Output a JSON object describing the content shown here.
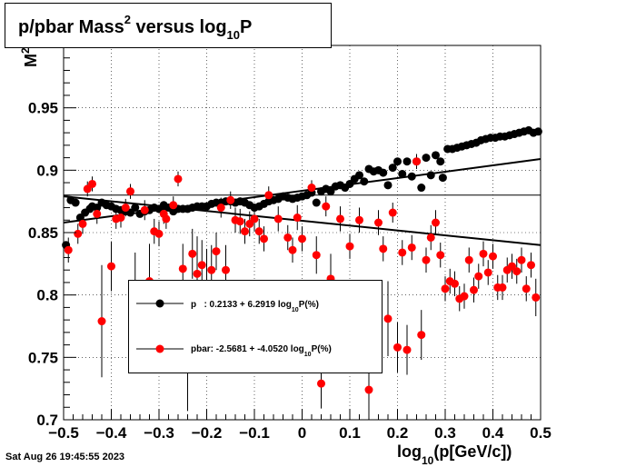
{
  "title": {
    "base": "p/pbar Mass",
    "sup": "2",
    "mid": " versus log",
    "sub": "10",
    "end": "P"
  },
  "footer": {
    "timestamp": "Sat Aug 26 19:45:55 2023"
  },
  "axes": {
    "xlabel_pre": "log",
    "xlabel_sub": "10",
    "xlabel_post": "(p[GeV/c])",
    "ylabel": "M",
    "ylabel_sup": "2"
  },
  "legend": {
    "entries": [
      {
        "name": "p",
        "text_pre": "p   : 0.2133 + 6.2919 log",
        "text_sub": "10",
        "text_post": "P(%)",
        "color": "#000000"
      },
      {
        "name": "pbar",
        "text_pre": "pbar: -2.5681 + -4.0520 log",
        "text_sub": "10",
        "text_post": "P(%)",
        "color": "#ff0000"
      }
    ]
  },
  "chart_data": {
    "type": "scatter",
    "xlim": [
      -0.5,
      0.5
    ],
    "ylim": [
      0.7,
      1.0
    ],
    "grid": true,
    "legend_position": "center-left",
    "xticks": [
      -0.5,
      -0.4,
      -0.3,
      -0.2,
      -0.1,
      0,
      0.1,
      0.2,
      0.3,
      0.4,
      0.5
    ],
    "xtick_labels": [
      "−0.5",
      "−0.4",
      "−0.3",
      "−0.2",
      "−0.1",
      "0",
      "0.1",
      "0.2",
      "0.3",
      "0.4",
      "0.5"
    ],
    "yticks": [
      0.7,
      0.75,
      0.8,
      0.85,
      0.9,
      0.95
    ],
    "ytick_labels": [
      "0.7",
      "0.75",
      "0.8",
      "0.85",
      "0.9",
      "0.95"
    ],
    "reference_line_y": 0.88,
    "fit_lines": [
      {
        "name": "p fit",
        "color": "#000000",
        "x": [
          -0.5,
          0.5
        ],
        "y": [
          0.858,
          0.909
        ]
      },
      {
        "name": "pbar fit",
        "color": "#000000",
        "x": [
          -0.5,
          0.5
        ],
        "y": [
          0.879,
          0.84
        ]
      }
    ],
    "series": [
      {
        "name": "p",
        "color": "#000000",
        "points": [
          [
            -0.495,
            0.84,
            0.003
          ],
          [
            -0.485,
            0.876,
            0.002
          ],
          [
            -0.475,
            0.874,
            0.002
          ],
          [
            -0.465,
            0.862,
            0.002
          ],
          [
            -0.455,
            0.866,
            0.002
          ],
          [
            -0.445,
            0.869,
            0.002
          ],
          [
            -0.44,
            0.871,
            0.002
          ],
          [
            -0.43,
            0.87,
            0.002
          ],
          [
            -0.42,
            0.874,
            0.002
          ],
          [
            -0.41,
            0.872,
            0.002
          ],
          [
            -0.4,
            0.871,
            0.002
          ],
          [
            -0.39,
            0.869,
            0.002
          ],
          [
            -0.38,
            0.868,
            0.002
          ],
          [
            -0.37,
            0.867,
            0.002
          ],
          [
            -0.36,
            0.866,
            0.002
          ],
          [
            -0.35,
            0.87,
            0.002
          ],
          [
            -0.34,
            0.865,
            0.002
          ],
          [
            -0.33,
            0.867,
            0.002
          ],
          [
            -0.32,
            0.868,
            0.002
          ],
          [
            -0.31,
            0.87,
            0.002
          ],
          [
            -0.3,
            0.869,
            0.002
          ],
          [
            -0.29,
            0.872,
            0.002
          ],
          [
            -0.28,
            0.87,
            0.002
          ],
          [
            -0.27,
            0.867,
            0.002
          ],
          [
            -0.26,
            0.869,
            0.002
          ],
          [
            -0.25,
            0.869,
            0.002
          ],
          [
            -0.24,
            0.869,
            0.002
          ],
          [
            -0.23,
            0.87,
            0.002
          ],
          [
            -0.22,
            0.871,
            0.002
          ],
          [
            -0.21,
            0.871,
            0.002
          ],
          [
            -0.2,
            0.871,
            0.002
          ],
          [
            -0.19,
            0.873,
            0.002
          ],
          [
            -0.18,
            0.874,
            0.002
          ],
          [
            -0.17,
            0.874,
            0.002
          ],
          [
            -0.16,
            0.875,
            0.002
          ],
          [
            -0.15,
            0.875,
            0.002
          ],
          [
            -0.14,
            0.874,
            0.002
          ],
          [
            -0.13,
            0.875,
            0.002
          ],
          [
            -0.12,
            0.874,
            0.002
          ],
          [
            -0.11,
            0.872,
            0.002
          ],
          [
            -0.1,
            0.87,
            0.002
          ],
          [
            -0.09,
            0.871,
            0.002
          ],
          [
            -0.08,
            0.873,
            0.002
          ],
          [
            -0.07,
            0.875,
            0.002
          ],
          [
            -0.06,
            0.876,
            0.002
          ],
          [
            -0.05,
            0.877,
            0.002
          ],
          [
            -0.04,
            0.879,
            0.002
          ],
          [
            -0.03,
            0.878,
            0.002
          ],
          [
            -0.02,
            0.877,
            0.002
          ],
          [
            -0.01,
            0.878,
            0.002
          ],
          [
            0.0,
            0.879,
            0.002
          ],
          [
            0.01,
            0.88,
            0.002
          ],
          [
            0.02,
            0.882,
            0.002
          ],
          [
            0.03,
            0.874,
            0.002
          ],
          [
            0.04,
            0.883,
            0.002
          ],
          [
            0.05,
            0.885,
            0.002
          ],
          [
            0.06,
            0.883,
            0.002
          ],
          [
            0.07,
            0.887,
            0.002
          ],
          [
            0.08,
            0.888,
            0.002
          ],
          [
            0.09,
            0.886,
            0.002
          ],
          [
            0.1,
            0.889,
            0.002
          ],
          [
            0.11,
            0.893,
            0.002
          ],
          [
            0.12,
            0.896,
            0.002
          ],
          [
            0.13,
            0.891,
            0.002
          ],
          [
            0.14,
            0.901,
            0.002
          ],
          [
            0.15,
            0.899,
            0.002
          ],
          [
            0.16,
            0.9,
            0.002
          ],
          [
            0.17,
            0.898,
            0.002
          ],
          [
            0.18,
            0.888,
            0.002
          ],
          [
            0.19,
            0.902,
            0.002
          ],
          [
            0.2,
            0.907,
            0.002
          ],
          [
            0.21,
            0.897,
            0.002
          ],
          [
            0.22,
            0.907,
            0.002
          ],
          [
            0.23,
            0.895,
            0.002
          ],
          [
            0.24,
            0.907,
            0.002
          ],
          [
            0.25,
            0.886,
            0.002
          ],
          [
            0.26,
            0.91,
            0.002
          ],
          [
            0.27,
            0.896,
            0.002
          ],
          [
            0.28,
            0.912,
            0.002
          ],
          [
            0.29,
            0.907,
            0.002
          ],
          [
            0.295,
            0.894,
            0.002
          ],
          [
            0.305,
            0.917,
            0.002
          ],
          [
            0.315,
            0.917,
            0.002
          ],
          [
            0.325,
            0.918,
            0.002
          ],
          [
            0.335,
            0.919,
            0.002
          ],
          [
            0.345,
            0.92,
            0.002
          ],
          [
            0.355,
            0.921,
            0.002
          ],
          [
            0.365,
            0.922,
            0.002
          ],
          [
            0.375,
            0.924,
            0.002
          ],
          [
            0.385,
            0.925,
            0.002
          ],
          [
            0.395,
            0.926,
            0.002
          ],
          [
            0.405,
            0.926,
            0.002
          ],
          [
            0.415,
            0.927,
            0.002
          ],
          [
            0.425,
            0.927,
            0.002
          ],
          [
            0.435,
            0.928,
            0.002
          ],
          [
            0.445,
            0.929,
            0.002
          ],
          [
            0.455,
            0.93,
            0.002
          ],
          [
            0.465,
            0.931,
            0.002
          ],
          [
            0.475,
            0.932,
            0.002
          ],
          [
            0.485,
            0.93,
            0.002
          ],
          [
            0.495,
            0.931,
            0.002
          ]
        ]
      },
      {
        "name": "pbar",
        "color": "#ff0000",
        "points": [
          [
            -0.49,
            0.836,
            0.01
          ],
          [
            -0.47,
            0.849,
            0.008
          ],
          [
            -0.46,
            0.857,
            0.008
          ],
          [
            -0.45,
            0.885,
            0.006
          ],
          [
            -0.44,
            0.889,
            0.006
          ],
          [
            -0.43,
            0.865,
            0.008
          ],
          [
            -0.42,
            0.779,
            0.045
          ],
          [
            -0.4,
            0.823,
            0.02
          ],
          [
            -0.39,
            0.861,
            0.008
          ],
          [
            -0.38,
            0.862,
            0.008
          ],
          [
            -0.37,
            0.87,
            0.007
          ],
          [
            -0.36,
            0.883,
            0.006
          ],
          [
            -0.35,
            0.799,
            0.035
          ],
          [
            -0.33,
            0.868,
            0.008
          ],
          [
            -0.32,
            0.811,
            0.03
          ],
          [
            -0.31,
            0.851,
            0.01
          ],
          [
            -0.3,
            0.849,
            0.01
          ],
          [
            -0.29,
            0.865,
            0.008
          ],
          [
            -0.285,
            0.861,
            0.008
          ],
          [
            -0.27,
            0.872,
            0.007
          ],
          [
            -0.26,
            0.893,
            0.006
          ],
          [
            -0.25,
            0.821,
            0.02
          ],
          [
            -0.24,
            0.757,
            0.05
          ],
          [
            -0.23,
            0.833,
            0.02
          ],
          [
            -0.22,
            0.817,
            0.03
          ],
          [
            -0.21,
            0.824,
            0.02
          ],
          [
            -0.2,
            0.807,
            0.03
          ],
          [
            -0.19,
            0.82,
            0.02
          ],
          [
            -0.18,
            0.835,
            0.015
          ],
          [
            -0.17,
            0.87,
            0.008
          ],
          [
            -0.16,
            0.82,
            0.02
          ],
          [
            -0.15,
            0.876,
            0.007
          ],
          [
            -0.14,
            0.86,
            0.01
          ],
          [
            -0.13,
            0.859,
            0.01
          ],
          [
            -0.12,
            0.851,
            0.01
          ],
          [
            -0.11,
            0.857,
            0.01
          ],
          [
            -0.1,
            0.861,
            0.01
          ],
          [
            -0.09,
            0.851,
            0.01
          ],
          [
            -0.08,
            0.845,
            0.01
          ],
          [
            -0.07,
            0.88,
            0.007
          ],
          [
            -0.05,
            0.861,
            0.01
          ],
          [
            -0.03,
            0.846,
            0.01
          ],
          [
            -0.02,
            0.836,
            0.01
          ],
          [
            -0.01,
            0.862,
            0.01
          ],
          [
            0.0,
            0.845,
            0.01
          ],
          [
            0.02,
            0.886,
            0.006
          ],
          [
            0.03,
            0.832,
            0.015
          ],
          [
            0.04,
            0.729,
            0.02
          ],
          [
            0.05,
            0.871,
            0.008
          ],
          [
            0.06,
            0.813,
            0.02
          ],
          [
            0.08,
            0.861,
            0.01
          ],
          [
            0.1,
            0.839,
            0.01
          ],
          [
            0.12,
            0.86,
            0.01
          ],
          [
            0.14,
            0.724,
            0.02
          ],
          [
            0.16,
            0.858,
            0.01
          ],
          [
            0.17,
            0.837,
            0.01
          ],
          [
            0.18,
            0.781,
            0.03
          ],
          [
            0.19,
            0.866,
            0.008
          ],
          [
            0.2,
            0.758,
            0.02
          ],
          [
            0.21,
            0.834,
            0.01
          ],
          [
            0.22,
            0.756,
            0.02
          ],
          [
            0.23,
            0.838,
            0.01
          ],
          [
            0.24,
            0.907,
            0.006
          ],
          [
            0.25,
            0.768,
            0.02
          ],
          [
            0.26,
            0.828,
            0.01
          ],
          [
            0.27,
            0.846,
            0.01
          ],
          [
            0.28,
            0.858,
            0.01
          ],
          [
            0.29,
            0.832,
            0.01
          ],
          [
            0.3,
            0.805,
            0.01
          ],
          [
            0.31,
            0.811,
            0.01
          ],
          [
            0.32,
            0.809,
            0.01
          ],
          [
            0.33,
            0.797,
            0.01
          ],
          [
            0.34,
            0.799,
            0.01
          ],
          [
            0.35,
            0.828,
            0.01
          ],
          [
            0.36,
            0.804,
            0.01
          ],
          [
            0.37,
            0.815,
            0.01
          ],
          [
            0.38,
            0.833,
            0.01
          ],
          [
            0.39,
            0.818,
            0.01
          ],
          [
            0.4,
            0.831,
            0.01
          ],
          [
            0.41,
            0.806,
            0.01
          ],
          [
            0.42,
            0.806,
            0.01
          ],
          [
            0.43,
            0.82,
            0.01
          ],
          [
            0.44,
            0.823,
            0.01
          ],
          [
            0.45,
            0.819,
            0.01
          ],
          [
            0.46,
            0.828,
            0.01
          ],
          [
            0.47,
            0.805,
            0.01
          ],
          [
            0.48,
            0.824,
            0.01
          ],
          [
            0.49,
            0.798,
            0.015
          ]
        ]
      }
    ]
  }
}
